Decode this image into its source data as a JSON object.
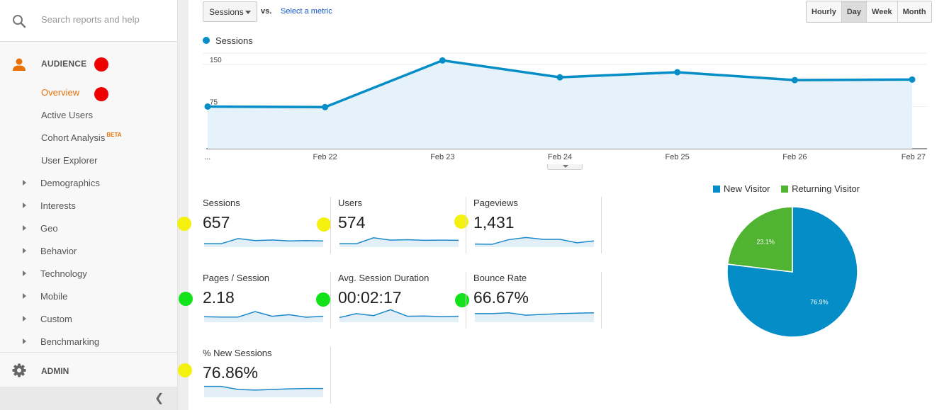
{
  "search": {
    "placeholder": "Search reports and help"
  },
  "sidebar": {
    "audience_label": "AUDIENCE",
    "items": [
      {
        "label": "Overview",
        "active": true
      },
      {
        "label": "Active Users"
      },
      {
        "label": "Cohort Analysis",
        "badge": "BETA"
      },
      {
        "label": "User Explorer"
      }
    ],
    "expandables": [
      "Demographics",
      "Interests",
      "Geo",
      "Behavior",
      "Technology",
      "Mobile",
      "Custom",
      "Benchmarking"
    ],
    "admin_label": "ADMIN",
    "collapse_icon": "chevron-left-icon"
  },
  "toolbar": {
    "metric_select": "Sessions",
    "vs_label": "vs.",
    "select_metric_link": "Select a metric",
    "ranges": [
      "Hourly",
      "Day",
      "Week",
      "Month"
    ],
    "selected_range": "Day"
  },
  "chart_data": {
    "type": "area",
    "x": [
      "...",
      "Feb 22",
      "Feb 23",
      "Feb 24",
      "Feb 25",
      "Feb 26",
      "Feb 27"
    ],
    "series": [
      {
        "name": "Sessions",
        "values": [
          75,
          74,
          157,
          127,
          136,
          122,
          123
        ]
      }
    ],
    "yticks": [
      75,
      150
    ],
    "ylim": [
      0,
      170
    ],
    "color": "#058dc7",
    "legend": "top-left"
  },
  "metrics": [
    {
      "label": "Sessions",
      "value": "657",
      "spark": [
        0.22,
        0.22,
        0.55,
        0.42,
        0.46,
        0.4,
        0.42,
        0.4
      ]
    },
    {
      "label": "Users",
      "value": "574",
      "spark": [
        0.22,
        0.22,
        0.6,
        0.45,
        0.48,
        0.44,
        0.45,
        0.44
      ]
    },
    {
      "label": "Pageviews",
      "value": "1,431",
      "spark": [
        0.2,
        0.18,
        0.48,
        0.62,
        0.5,
        0.5,
        0.28,
        0.4
      ]
    },
    {
      "label": "Pages / Session",
      "value": "2.18",
      "spark": [
        0.35,
        0.33,
        0.33,
        0.68,
        0.38,
        0.48,
        0.32,
        0.38
      ]
    },
    {
      "label": "Avg. Session Duration",
      "value": "00:02:17",
      "spark": [
        0.3,
        0.55,
        0.42,
        0.8,
        0.38,
        0.4,
        0.35,
        0.38
      ]
    },
    {
      "label": "Bounce Rate",
      "value": "66.67%",
      "spark": [
        0.55,
        0.55,
        0.6,
        0.45,
        0.5,
        0.55,
        0.58,
        0.6
      ]
    },
    {
      "label": "% New Sessions",
      "value": "76.86%",
      "spark": [
        0.7,
        0.7,
        0.5,
        0.46,
        0.5,
        0.54,
        0.56,
        0.56
      ]
    }
  ],
  "pie": {
    "legend": [
      {
        "name": "New Visitor",
        "color": "#058dc7"
      },
      {
        "name": "Returning Visitor",
        "color": "#50b432"
      }
    ],
    "slices": [
      {
        "name": "New Visitor",
        "value": 76.9,
        "label": "76.9%",
        "color": "#058dc7"
      },
      {
        "name": "Returning Visitor",
        "value": 23.1,
        "label": "23.1%",
        "color": "#50b432"
      }
    ]
  }
}
